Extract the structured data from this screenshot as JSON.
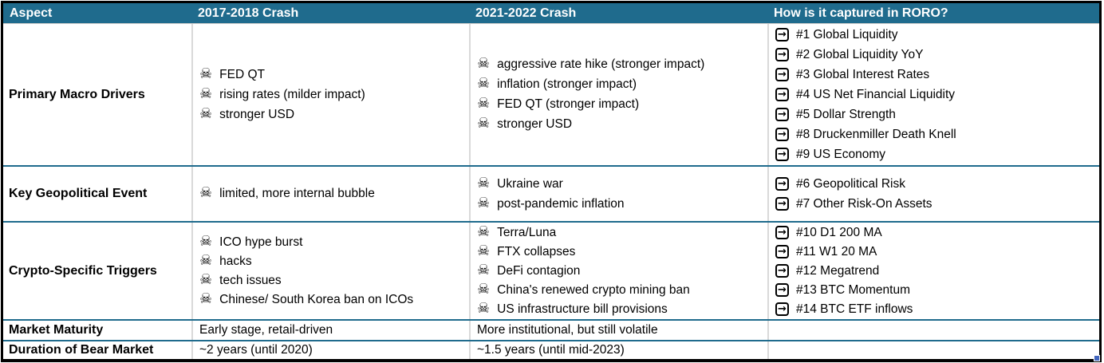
{
  "icons": {
    "skull": "☠",
    "arrow": "→"
  },
  "colors": {
    "header_bg": "#1F6B8D",
    "row_divider": "#1F6B8D",
    "column_rule": "#D9D9D9",
    "frame": "#000000",
    "selection_handle": "#4266BE"
  },
  "header": {
    "aspect": "Aspect",
    "crash_2017": "2017-2018 Crash",
    "crash_2021": "2021-2022 Crash",
    "roro": "How is it captured in RORO?"
  },
  "rows": [
    {
      "aspect": "Primary Macro Drivers",
      "crash_2017": [
        "FED QT",
        "rising rates (milder impact)",
        "stronger USD"
      ],
      "crash_2021": [
        "aggressive rate hike (stronger impact)",
        "inflation (stronger impact)",
        "FED QT (stronger impact)",
        "stronger USD"
      ],
      "roro": [
        "#1 Global Liquidity",
        "#2 Global Liquidity YoY",
        "#3 Global Interest Rates",
        "#4 US Net Financial Liquidity",
        "#5 Dollar Strength",
        "#8 Druckenmiller Death Knell",
        "#9 US Economy"
      ]
    },
    {
      "aspect": "Key Geopolitical Event",
      "crash_2017": [
        "limited, more internal bubble"
      ],
      "crash_2021": [
        "Ukraine war",
        "post-pandemic inflation"
      ],
      "roro": [
        "#6 Geopolitical Risk",
        "#7 Other Risk-On Assets"
      ]
    },
    {
      "aspect": "Crypto-Specific Triggers",
      "crash_2017": [
        "ICO hype burst",
        "hacks",
        "tech issues",
        "Chinese/ South Korea ban on ICOs"
      ],
      "crash_2021": [
        "Terra/Luna",
        "FTX collapses",
        "DeFi contagion",
        "China's renewed crypto mining ban",
        "US infrastructure bill provisions"
      ],
      "roro": [
        "#10 D1 200 MA",
        "#11 W1 20 MA",
        "#12 Megatrend",
        "#13 BTC Momentum",
        "#14 BTC ETF inflows"
      ]
    },
    {
      "aspect": "Market Maturity",
      "crash_2017_text": "Early stage, retail-driven",
      "crash_2021_text": "More institutional, but still volatile",
      "roro_text": ""
    },
    {
      "aspect": "Duration of Bear Market",
      "crash_2017_text": "~2 years (until 2020)",
      "crash_2021_text": "~1.5 years (until mid-2023)",
      "roro_text": ""
    }
  ]
}
